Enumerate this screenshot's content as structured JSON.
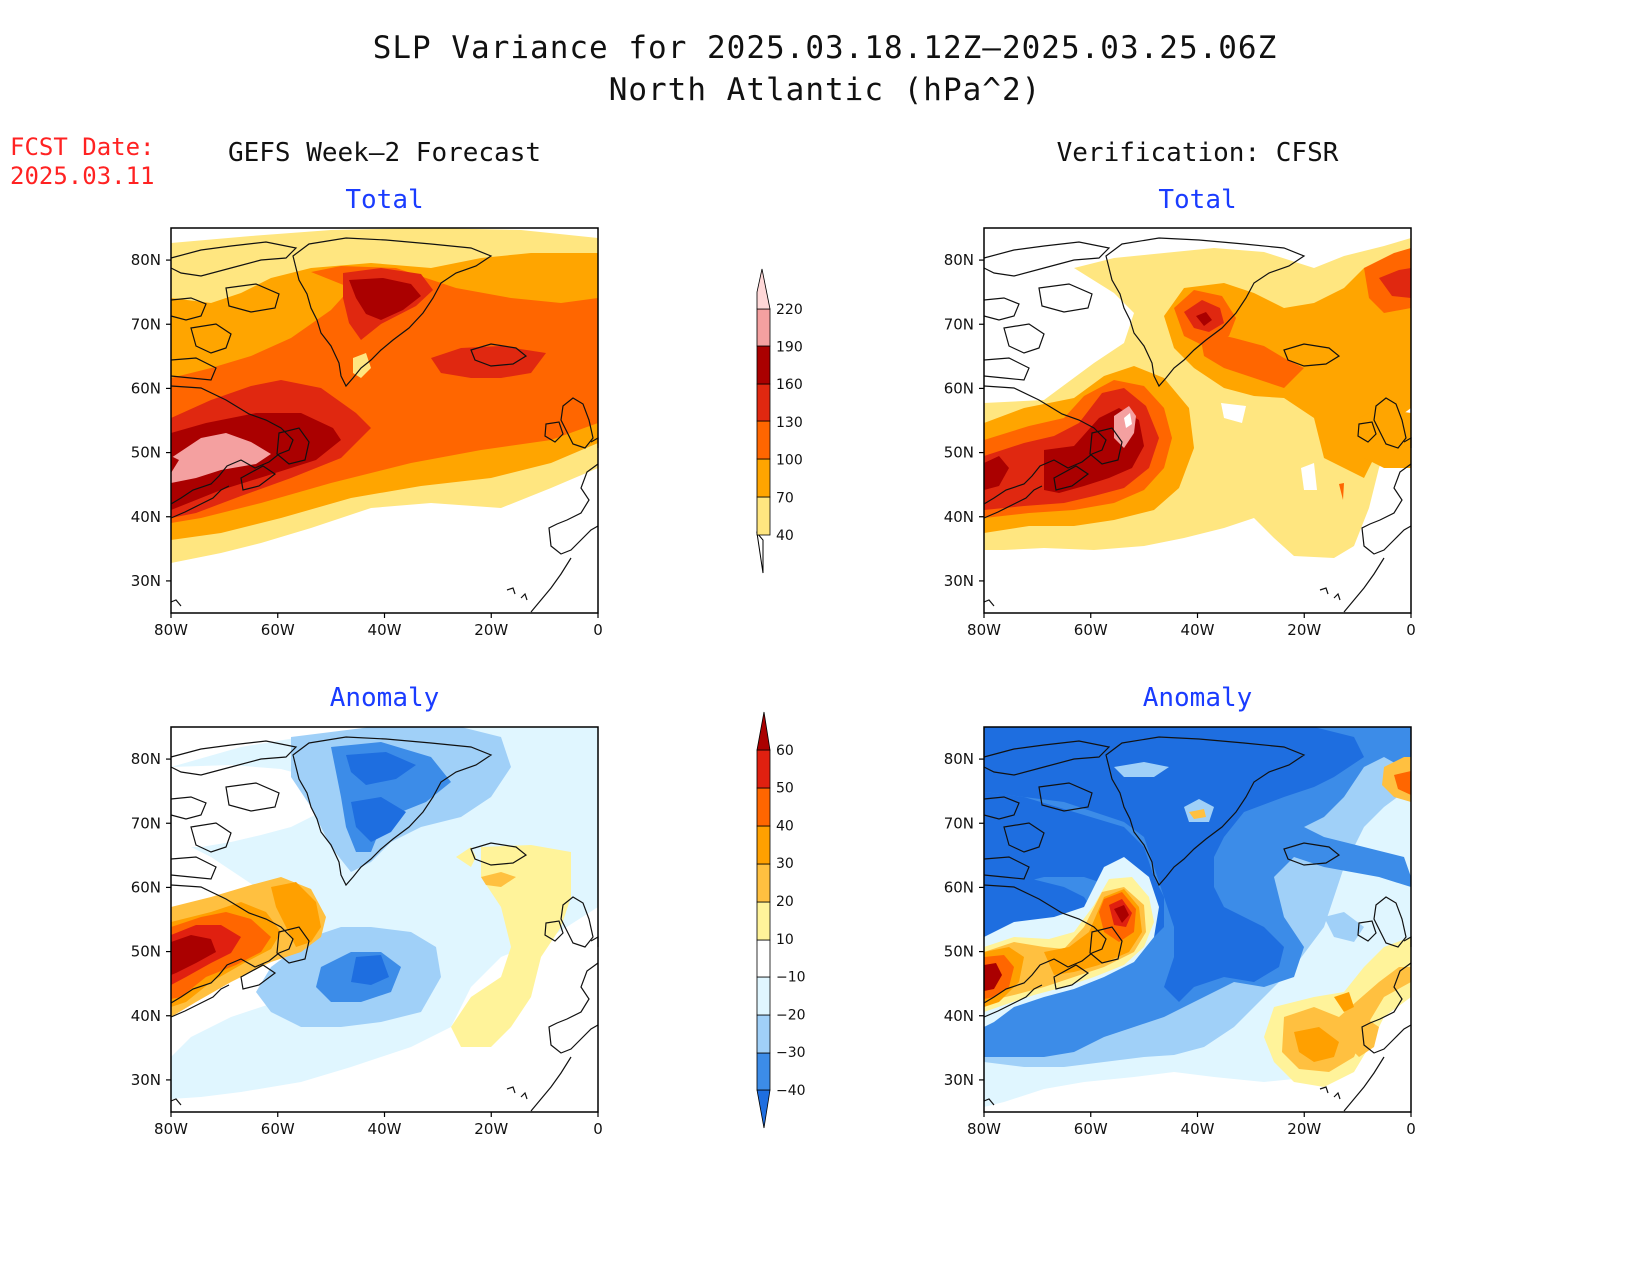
{
  "title": {
    "line1": "SLP Variance for 2025.03.18.12Z–2025.03.25.06Z",
    "line2": "North Atlantic (hPa^2)"
  },
  "fcst": {
    "line1": "FCST Date:",
    "line2": "2025.03.11"
  },
  "columns": {
    "left": "GEFS Week–2 Forecast",
    "right": "Verification: CFSR"
  },
  "panel_titles": {
    "total": "Total",
    "anomaly": "Anomaly"
  },
  "axes": {
    "lat_labels": [
      "80N",
      "70N",
      "60N",
      "50N",
      "40N",
      "30N"
    ],
    "lat_values": [
      80,
      70,
      60,
      50,
      40,
      30
    ],
    "lon_labels": [
      "80W",
      "60W",
      "40W",
      "20W",
      "0"
    ],
    "lon_values": [
      -80,
      -60,
      -40,
      -20,
      0
    ],
    "lon_range": [
      -80,
      0
    ],
    "lat_range": [
      25,
      85
    ]
  },
  "colorbars": {
    "total": {
      "labels": [
        "40",
        "70",
        "100",
        "130",
        "160",
        "190",
        "220"
      ],
      "colors": [
        "#ffe680",
        "#ffa500",
        "#ff6600",
        "#e02810",
        "#aa0000",
        "#f4a0a0",
        "#ffd8d8"
      ]
    },
    "anomaly": {
      "labels": [
        "−40",
        "−30",
        "−20",
        "−10",
        "10",
        "20",
        "30",
        "40",
        "50",
        "60"
      ],
      "colors": [
        "#1e6ee0",
        "#3c8ce8",
        "#a0d0f8",
        "#e0f6ff",
        "#ffffff",
        "#fff39a",
        "#ffc040",
        "#ffa000",
        "#ff6600",
        "#e02010",
        "#aa0000"
      ]
    }
  },
  "legend_colors": {
    "total": {
      "c40": "#ffe680",
      "c70": "#ffa500",
      "c100": "#ff6600",
      "c130": "#e02810",
      "c160": "#aa0000",
      "c190": "#f4a0a0"
    },
    "anom": {
      "n40": "#1e6ee0",
      "n30": "#3c8ce8",
      "n20": "#a0d0f8",
      "n10": "#e0f6ff",
      "p10": "#fff39a",
      "p20": "#ffc040",
      "p30": "#ffa000",
      "p40": "#ff6600",
      "p50": "#e02010",
      "p60": "#aa0000"
    }
  }
}
